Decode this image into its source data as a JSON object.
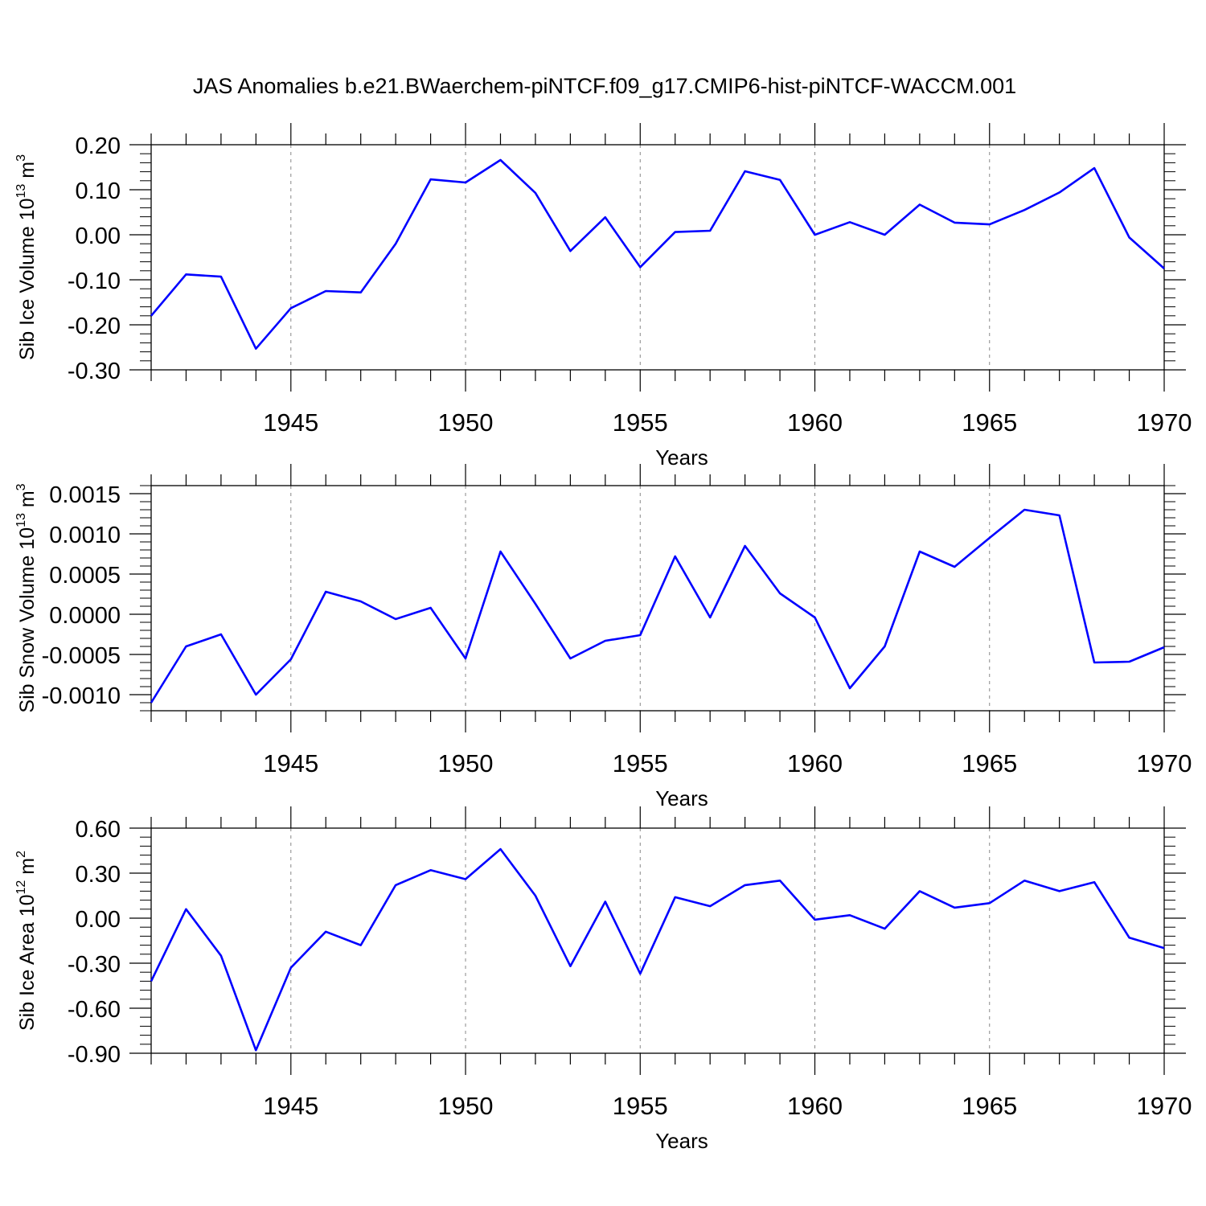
{
  "figure": {
    "title": "JAS Anomalies b.e21.BWaerchem-piNTCF.f09_g17.CMIP6-hist-piNTCF-WACCM.001"
  },
  "chart_data": [
    {
      "type": "line",
      "ylabel_prefix": "Sib Ice Volume 10",
      "ylabel_exp": "13",
      "ylabel_unit": " m",
      "ylabel_unit_exp": "3",
      "xlabel": "Years",
      "x": [
        1941,
        1942,
        1943,
        1944,
        1945,
        1946,
        1947,
        1948,
        1949,
        1950,
        1951,
        1952,
        1953,
        1954,
        1955,
        1956,
        1957,
        1958,
        1959,
        1960,
        1961,
        1962,
        1963,
        1964,
        1965,
        1966,
        1967,
        1968,
        1969,
        1970
      ],
      "values": [
        -0.18,
        -0.088,
        -0.093,
        -0.253,
        -0.163,
        -0.125,
        -0.128,
        -0.02,
        0.123,
        0.116,
        0.166,
        0.093,
        -0.036,
        0.039,
        -0.072,
        0.006,
        0.009,
        0.141,
        0.122,
        0.0,
        0.028,
        0.0,
        0.067,
        0.027,
        0.023,
        0.055,
        0.094,
        0.148,
        -0.006,
        -0.075
      ],
      "xlim": [
        1941,
        1970
      ],
      "ylim": [
        -0.3,
        0.2
      ],
      "yticks": [
        -0.3,
        -0.2,
        -0.1,
        0.0,
        0.1,
        0.2
      ],
      "ytick_labels": [
        "-0.30",
        "-0.20",
        "-0.10",
        "0.00",
        "0.10",
        "0.20"
      ],
      "xticks": [
        1945,
        1950,
        1955,
        1960,
        1965,
        1970
      ],
      "xtick_labels": [
        "1945",
        "1950",
        "1955",
        "1960",
        "1965",
        "1970"
      ],
      "line_color": "#0000ff",
      "grid_color": "#888888"
    },
    {
      "type": "line",
      "ylabel_prefix": "Sib Snow Volume 10",
      "ylabel_exp": "13",
      "ylabel_unit": " m",
      "ylabel_unit_exp": "3",
      "xlabel": "Years",
      "x": [
        1941,
        1942,
        1943,
        1944,
        1945,
        1946,
        1947,
        1948,
        1949,
        1950,
        1951,
        1952,
        1953,
        1954,
        1955,
        1956,
        1957,
        1958,
        1959,
        1960,
        1961,
        1962,
        1963,
        1964,
        1965,
        1966,
        1967,
        1968,
        1969,
        1970
      ],
      "values": [
        -0.0011,
        -0.0004,
        -0.00025,
        -0.001,
        -0.00056,
        0.00028,
        0.00016,
        -6e-05,
        8e-05,
        -0.00055,
        0.00078,
        0.00013,
        -0.00055,
        -0.00033,
        -0.00026,
        0.00072,
        -4e-05,
        0.00085,
        0.00026,
        -4e-05,
        -0.00092,
        -0.0004,
        0.00078,
        0.00059,
        0.00095,
        0.0013,
        0.00123,
        -0.0006,
        -0.00059,
        -0.00041
      ],
      "xlim": [
        1941,
        1970
      ],
      "ylim": [
        -0.0012,
        0.0016
      ],
      "yticks": [
        -0.001,
        -0.0005,
        0.0,
        0.0005,
        0.001,
        0.0015
      ],
      "ytick_labels": [
        "-0.0010",
        "-0.0005",
        "0.0000",
        "0.0005",
        "0.0010",
        "0.0015"
      ],
      "xticks": [
        1945,
        1950,
        1955,
        1960,
        1965,
        1970
      ],
      "xtick_labels": [
        "1945",
        "1950",
        "1955",
        "1960",
        "1965",
        "1970"
      ],
      "line_color": "#0000ff",
      "grid_color": "#888888"
    },
    {
      "type": "line",
      "ylabel_prefix": "Sib Ice Area 10",
      "ylabel_exp": "12",
      "ylabel_unit": " m",
      "ylabel_unit_exp": "2",
      "xlabel": "Years",
      "x": [
        1941,
        1942,
        1943,
        1944,
        1945,
        1946,
        1947,
        1948,
        1949,
        1950,
        1951,
        1952,
        1953,
        1954,
        1955,
        1956,
        1957,
        1958,
        1959,
        1960,
        1961,
        1962,
        1963,
        1964,
        1965,
        1966,
        1967,
        1968,
        1969,
        1970
      ],
      "values": [
        -0.42,
        0.06,
        -0.25,
        -0.88,
        -0.33,
        -0.09,
        -0.18,
        0.22,
        0.32,
        0.26,
        0.46,
        0.15,
        -0.32,
        0.11,
        -0.37,
        0.14,
        0.08,
        0.22,
        0.25,
        -0.01,
        0.02,
        -0.07,
        0.18,
        0.07,
        0.1,
        0.25,
        0.18,
        0.24,
        -0.13,
        -0.2
      ],
      "xlim": [
        1941,
        1970
      ],
      "ylim": [
        -0.9,
        0.6
      ],
      "yticks": [
        -0.9,
        -0.6,
        -0.3,
        0.0,
        0.3,
        0.6
      ],
      "ytick_labels": [
        "-0.90",
        "-0.60",
        "-0.30",
        "0.00",
        "0.30",
        "0.60"
      ],
      "xticks": [
        1945,
        1950,
        1955,
        1960,
        1965,
        1970
      ],
      "xtick_labels": [
        "1945",
        "1950",
        "1955",
        "1960",
        "1965",
        "1970"
      ],
      "line_color": "#0000ff",
      "grid_color": "#888888"
    }
  ]
}
